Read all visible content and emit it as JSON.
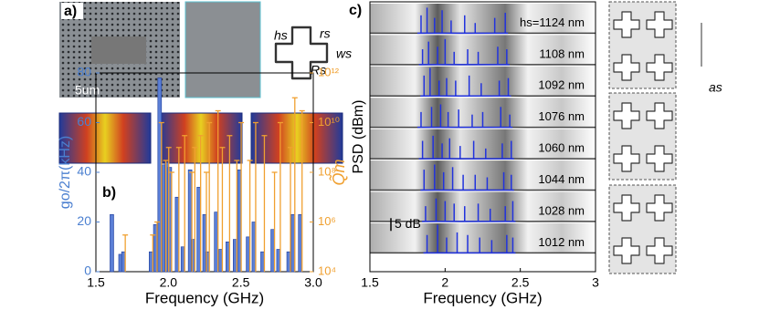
{
  "labels": {
    "a": "a)",
    "b": "b)",
    "c": "c)",
    "scale": "5um",
    "hs": "hs",
    "rs": "rs",
    "ws": "ws",
    "Rs": "Rs",
    "as": "as"
  },
  "chart_data": [
    {
      "type": "bar",
      "x_label": "Frequency (GHz)",
      "y_label": "go/2π(kHz)",
      "y2_label": "Q̃m",
      "xlim": [
        1.5,
        3
      ],
      "xticks": [
        1.5,
        {
          "value": 2,
          "label": "2.0"
        },
        2.5,
        {
          "value": 3,
          "label": "3.0"
        }
      ],
      "ylim": [
        0,
        80
      ],
      "yticks": [
        0,
        20,
        40,
        60,
        80
      ],
      "y2lim": [
        10000,
        1000000000000
      ],
      "y2_log": true,
      "y2ticks": [
        {
          "value": 10000,
          "label": "10⁴"
        },
        {
          "value": 1000000,
          "label": "10⁶"
        },
        {
          "value": 100000000,
          "label": "10⁸"
        },
        {
          "value": 10000000000,
          "label": "10¹⁰"
        },
        {
          "value": 1000000000000,
          "label": "10¹²"
        }
      ],
      "x": [
        1.61,
        1.67,
        1.69,
        1.88,
        1.91,
        1.94,
        1.97,
        1.99,
        2.01,
        2.06,
        2.1,
        2.15,
        2.17,
        2.21,
        2.25,
        2.27,
        2.33,
        2.36,
        2.41,
        2.46,
        2.49,
        2.55,
        2.59,
        2.65,
        2.72,
        2.76,
        2.83,
        2.86,
        2.91
      ],
      "series": [
        {
          "color": "#5b7fd6",
          "values": [
            23,
            7,
            8,
            8,
            19,
            78,
            43,
            44,
            42,
            30,
            10,
            41,
            13,
            34,
            23,
            8,
            24,
            9,
            12,
            13,
            41,
            14,
            20,
            8,
            17,
            9,
            8,
            23,
            23
          ]
        },
        {
          "color": "#f0a030",
          "axis": "y2",
          "values": [
            null,
            null,
            300000,
            300000,
            1000000,
            10000000000,
            300000000,
            1000000000,
            100000000,
            1000000000,
            3000000000,
            100000000,
            1000000000,
            3000000000,
            100000000,
            10000000000,
            30000000000,
            1000000000,
            3000000000,
            300000000,
            10000000000,
            300000000,
            10000000000,
            3000000000,
            100000000,
            10000000000,
            1000000000,
            100000000000,
            30000000000
          ]
        }
      ]
    },
    {
      "type": "spectra",
      "x_label": "Frequency (GHz)",
      "y_label": "PSD (dBm)",
      "xlim": [
        1.5,
        3
      ],
      "xticks": [
        1.5,
        2,
        2.5,
        3
      ],
      "scale_bar": {
        "value": 5,
        "label": "5 dB"
      },
      "series": [
        {
          "name": "hs=1124 nm",
          "color": "#2233dd",
          "x": [
            1.84,
            1.88,
            1.93,
            1.98,
            2.04,
            2.13,
            2.2,
            2.33,
            2.4
          ],
          "values": [
            7,
            10,
            6,
            9,
            5,
            7,
            4,
            6,
            8
          ]
        },
        {
          "name": "1108 nm",
          "color": "#2233dd",
          "x": [
            1.85,
            1.89,
            1.95,
            2.0,
            2.06,
            2.15,
            2.22,
            2.35,
            2.41
          ],
          "values": [
            6,
            9,
            7,
            10,
            5,
            6,
            5,
            7,
            6
          ]
        },
        {
          "name": "1092 nm",
          "color": "#2233dd",
          "x": [
            1.86,
            1.9,
            1.96,
            2.01,
            2.07,
            2.16,
            2.24,
            2.36,
            2.42
          ],
          "values": [
            8,
            11,
            6,
            7,
            6,
            8,
            5,
            6,
            7
          ]
        },
        {
          "name": "1076 nm",
          "color": "#2233dd",
          "x": [
            1.84,
            1.91,
            1.97,
            2.02,
            2.09,
            2.18,
            2.25,
            2.37,
            2.43
          ],
          "values": [
            6,
            8,
            9,
            6,
            7,
            5,
            6,
            8,
            5
          ]
        },
        {
          "name": "1060 nm",
          "color": "#2233dd",
          "x": [
            1.85,
            1.92,
            1.98,
            2.03,
            2.1,
            2.19,
            2.27,
            2.38,
            2.44
          ],
          "values": [
            7,
            9,
            6,
            8,
            5,
            7,
            4,
            6,
            7
          ]
        },
        {
          "name": "1044 nm",
          "color": "#2233dd",
          "x": [
            1.86,
            1.93,
            1.99,
            2.05,
            2.12,
            2.2,
            2.28,
            2.39,
            2.44
          ],
          "values": [
            8,
            10,
            7,
            9,
            6,
            6,
            5,
            7,
            6
          ]
        },
        {
          "name": "1028 nm",
          "color": "#2233dd",
          "x": [
            1.87,
            1.94,
            2.0,
            2.06,
            2.13,
            2.22,
            2.3,
            2.4,
            2.45
          ],
          "values": [
            6,
            9,
            8,
            7,
            6,
            7,
            5,
            6,
            8
          ]
        },
        {
          "name": "1012 nm",
          "color": "#2233dd",
          "x": [
            1.88,
            1.95,
            2.01,
            2.08,
            2.15,
            2.23,
            2.31,
            2.41,
            2.45
          ],
          "values": [
            7,
            11,
            6,
            8,
            7,
            6,
            5,
            7,
            6
          ]
        }
      ]
    }
  ]
}
